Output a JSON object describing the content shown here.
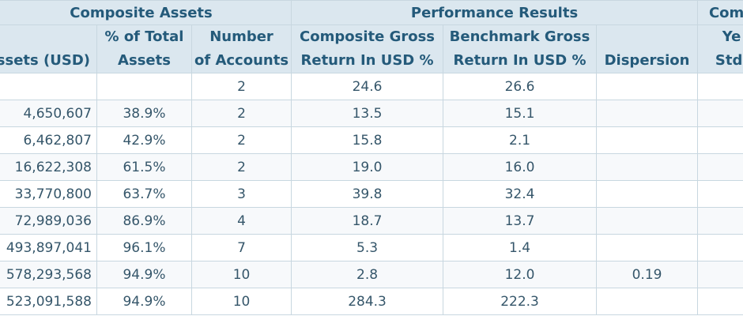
{
  "table": {
    "groups": [
      {
        "label": "Composite Assets"
      },
      {
        "label": "Performance Results"
      },
      {
        "label": "Comp"
      }
    ],
    "headers": {
      "assets": "ssets (USD)",
      "pct_total": [
        "% of Total",
        "Assets"
      ],
      "num_accounts": [
        "Number",
        "of Accounts"
      ],
      "comp_gross": [
        "Composite Gross",
        "Return In USD %"
      ],
      "bench_gross": [
        "Benchmark Gross",
        "Return In USD %"
      ],
      "dispersion": "Dispersion",
      "comp_std": [
        "Ye",
        "Std."
      ]
    },
    "rows": [
      {
        "assets": "",
        "pct_total": "",
        "num_accounts": "2",
        "comp_gross": "24.6",
        "bench_gross": "26.6",
        "dispersion": "",
        "comp_std": ""
      },
      {
        "assets": "4,650,607",
        "pct_total": "38.9%",
        "num_accounts": "2",
        "comp_gross": "13.5",
        "bench_gross": "15.1",
        "dispersion": "",
        "comp_std": ""
      },
      {
        "assets": "6,462,807",
        "pct_total": "42.9%",
        "num_accounts": "2",
        "comp_gross": "15.8",
        "bench_gross": "2.1",
        "dispersion": "",
        "comp_std": ""
      },
      {
        "assets": "16,622,308",
        "pct_total": "61.5%",
        "num_accounts": "2",
        "comp_gross": "19.0",
        "bench_gross": "16.0",
        "dispersion": "",
        "comp_std": ""
      },
      {
        "assets": "33,770,800",
        "pct_total": "63.7%",
        "num_accounts": "3",
        "comp_gross": "39.8",
        "bench_gross": "32.4",
        "dispersion": "",
        "comp_std": ""
      },
      {
        "assets": "72,989,036",
        "pct_total": "86.9%",
        "num_accounts": "4",
        "comp_gross": "18.7",
        "bench_gross": "13.7",
        "dispersion": "",
        "comp_std": ""
      },
      {
        "assets": "493,897,041",
        "pct_total": "96.1%",
        "num_accounts": "7",
        "comp_gross": "5.3",
        "bench_gross": "1.4",
        "dispersion": "",
        "comp_std": ""
      },
      {
        "assets": "578,293,568",
        "pct_total": "94.9%",
        "num_accounts": "10",
        "comp_gross": "2.8",
        "bench_gross": "12.0",
        "dispersion": "0.19",
        "comp_std": ""
      },
      {
        "assets": "523,091,588",
        "pct_total": "94.9%",
        "num_accounts": "10",
        "comp_gross": "284.3",
        "bench_gross": "222.3",
        "dispersion": "",
        "comp_std": ""
      }
    ]
  },
  "colors": {
    "header_bg": "#dbe7ef",
    "header_text": "#245a7a",
    "border": "#c8d7e0",
    "body_text": "#35566a"
  }
}
